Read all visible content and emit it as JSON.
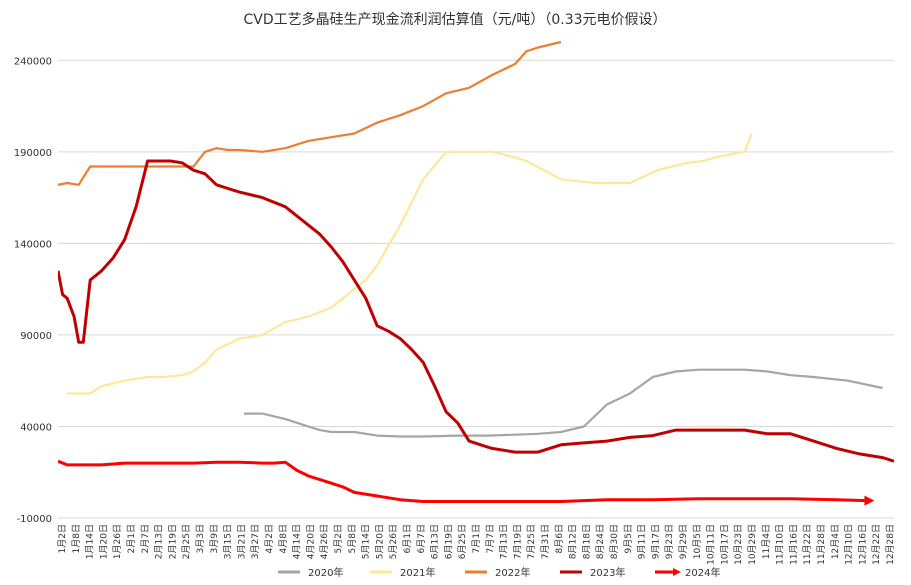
{
  "chart_data": {
    "type": "line",
    "title": "CVD工艺多晶硅生产现金流利润估算值（元/吨）（0.33元电价假设）",
    "xlabel": "",
    "ylabel": "",
    "ylim": [
      -10000,
      250000
    ],
    "yticks": [
      -10000,
      40000,
      90000,
      140000,
      190000,
      240000
    ],
    "ytick_labels": [
      "-10000",
      "40000",
      "90000",
      "140000",
      "190000",
      "240000"
    ],
    "x_tick_labels": [
      "1月2日",
      "1月8日",
      "1月14日",
      "1月20日",
      "1月26日",
      "2月1日",
      "2月7日",
      "2月13日",
      "2月19日",
      "2月25日",
      "3月3日",
      "3月9日",
      "3月15日",
      "3月21日",
      "3月27日",
      "4月2日",
      "4月8日",
      "4月14日",
      "4月20日",
      "4月26日",
      "5月2日",
      "5月8日",
      "5月14日",
      "5月20日",
      "5月26日",
      "6月1日",
      "6月7日",
      "6月13日",
      "6月19日",
      "6月25日",
      "7月1日",
      "7月7日",
      "7月13日",
      "7月19日",
      "7月25日",
      "7月31日",
      "8月6日",
      "8月12日",
      "8月18日",
      "8月24日",
      "8月30日",
      "9月5日",
      "9月11日",
      "9月17日",
      "9月23日",
      "9月29日",
      "10月5日",
      "10月11日",
      "10月17日",
      "10月23日",
      "10月29日",
      "11月4日",
      "11月10日",
      "11月16日",
      "11月22日",
      "11月28日",
      "12月4日",
      "12月10日",
      "12月16日",
      "12月22日",
      "12月28日"
    ],
    "grid": true,
    "legend_position": "bottom",
    "series": [
      {
        "name": "2020年",
        "color": "#a5a5a5",
        "x": [
          82,
          90,
          100,
          110,
          115,
          120,
          130,
          140,
          150,
          160,
          175,
          188,
          200,
          210,
          220,
          230,
          240,
          250,
          260,
          270,
          280,
          290,
          300,
          310,
          320,
          330,
          345,
          360
        ],
        "values": [
          47000,
          47000,
          44000,
          40000,
          38000,
          37000,
          37000,
          35000,
          34500,
          34500,
          35000,
          35000,
          35500,
          36000,
          37000,
          40000,
          52000,
          58000,
          67000,
          70000,
          71000,
          71000,
          71000,
          70000,
          68000,
          67000,
          65000,
          61000
        ]
      },
      {
        "name": "2021年",
        "color": "#ffe699",
        "x": [
          5,
          15,
          20,
          30,
          40,
          47,
          55,
          60,
          65,
          70,
          80,
          90,
          100,
          110,
          120,
          130,
          135,
          140,
          150,
          160,
          170,
          180,
          190,
          200,
          205,
          220,
          235,
          250,
          262,
          275,
          282,
          287,
          300,
          303
        ],
        "values": [
          58000,
          58000,
          62000,
          65000,
          67000,
          67000,
          68000,
          70000,
          75000,
          82000,
          88000,
          90000,
          97000,
          100000,
          105000,
          115000,
          120000,
          128000,
          150000,
          175000,
          190000,
          190000,
          190000,
          187000,
          185000,
          175000,
          173000,
          173000,
          180000,
          184000,
          185000,
          187000,
          190000,
          200000
        ]
      },
      {
        "name": "2022年",
        "color": "#ed7d31",
        "x": [
          1,
          5,
          10,
          15,
          20,
          25,
          30,
          35,
          40,
          45,
          50,
          55,
          60,
          65,
          70,
          75,
          80,
          85,
          90,
          100,
          110,
          120,
          130,
          140,
          150,
          160,
          170,
          180,
          190,
          200,
          205,
          210,
          220
        ],
        "values": [
          172000,
          173000,
          172000,
          182000,
          182000,
          182000,
          182000,
          182000,
          182000,
          182000,
          182000,
          182000,
          182000,
          190000,
          192000,
          191000,
          191000,
          190500,
          190000,
          192000,
          196000,
          198000,
          200000,
          206000,
          210000,
          215000,
          222000,
          225000,
          232000,
          238000,
          245000,
          247000,
          250000
        ]
      },
      {
        "name": "2023年",
        "color": "#c00000",
        "x": [
          1,
          3,
          5,
          8,
          10,
          12,
          15,
          20,
          25,
          30,
          35,
          40,
          45,
          50,
          55,
          60,
          65,
          70,
          75,
          80,
          90,
          100,
          110,
          115,
          120,
          125,
          130,
          135,
          140,
          145,
          150,
          155,
          160,
          165,
          170,
          175,
          180,
          185,
          190,
          200,
          210,
          220,
          230,
          240,
          250,
          260,
          270,
          280,
          290,
          300,
          310,
          320,
          330,
          340,
          350,
          360,
          365
        ],
        "values": [
          125000,
          112000,
          110000,
          100000,
          86000,
          86000,
          120000,
          125000,
          132000,
          142000,
          160000,
          185000,
          185000,
          185000,
          184000,
          180000,
          178000,
          172000,
          170000,
          168000,
          165000,
          160000,
          150000,
          145000,
          138000,
          130000,
          120000,
          110000,
          95000,
          92000,
          88000,
          82000,
          75000,
          62000,
          48000,
          42000,
          32000,
          30000,
          28000,
          26000,
          26000,
          30000,
          31000,
          32000,
          34000,
          35000,
          38000,
          38000,
          38000,
          38000,
          36000,
          36000,
          32000,
          28000,
          25000,
          23000,
          21000
        ]
      },
      {
        "name": "2024年",
        "color": "#ff0000",
        "x": [
          1,
          5,
          10,
          20,
          30,
          40,
          50,
          60,
          70,
          80,
          90,
          95,
          100,
          105,
          110,
          115,
          120,
          125,
          130,
          140,
          150,
          160,
          180,
          200,
          220,
          240,
          260,
          280,
          300,
          320,
          340,
          353
        ],
        "values": [
          21000,
          19000,
          19000,
          19000,
          20000,
          20000,
          20000,
          20000,
          20500,
          20500,
          20000,
          20000,
          20500,
          16000,
          13000,
          11000,
          9000,
          7000,
          4000,
          2000,
          0,
          -1000,
          -1000,
          -1000,
          -1000,
          0,
          0,
          500,
          500,
          500,
          0,
          -500
        ]
      }
    ]
  }
}
